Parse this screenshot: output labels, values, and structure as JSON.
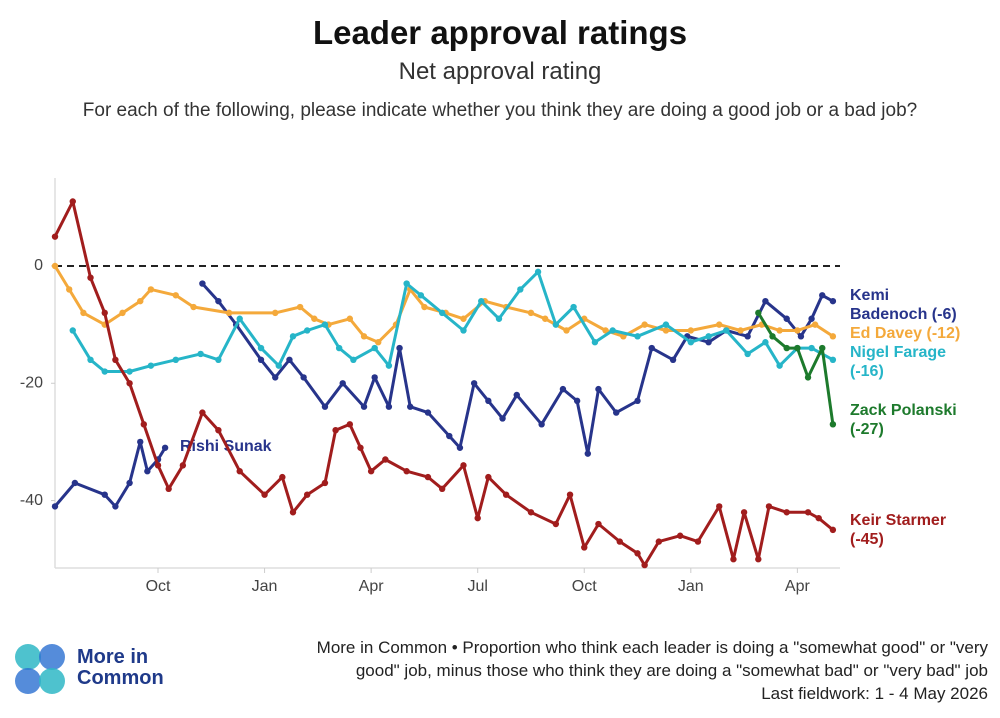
{
  "chart_data": {
    "type": "line",
    "title": "Leader approval ratings",
    "subtitle": "Net approval rating",
    "question": "For each of the following, please indicate whether you think they are doing a good job or a bad job?",
    "xlim": [
      0.1,
      22.2
    ],
    "xticks": [
      {
        "value": 3,
        "label": "Oct"
      },
      {
        "value": 6,
        "label": "Jan"
      },
      {
        "value": 9,
        "label": "Apr"
      },
      {
        "value": 12,
        "label": "Jul"
      },
      {
        "value": 15,
        "label": "Oct"
      },
      {
        "value": 18,
        "label": "Jan"
      },
      {
        "value": 21,
        "label": "Apr"
      }
    ],
    "ylim": [
      -51.5,
      15
    ],
    "yticks": [
      -40,
      -20,
      0
    ],
    "hline": 0,
    "series": [
      {
        "label": [
          "Rishi Sunak"
        ],
        "color": "#27348b",
        "x": [
          0.1,
          0.66,
          1.5,
          1.8,
          2.2,
          2.5,
          2.7,
          3.0,
          3.2
        ],
        "values": [
          -41,
          -37,
          -39,
          -41,
          -37,
          -30,
          -35,
          -33,
          -31
        ]
      },
      {
        "label": [
          "Kemi",
          "Badenoch (-6)"
        ],
        "color": "#27348b",
        "x": [
          4.25,
          4.7,
          5.2,
          5.9,
          6.3,
          6.7,
          7.1,
          7.7,
          8.2,
          8.8,
          9.1,
          9.5,
          9.8,
          10.1,
          10.6,
          11.2,
          11.5,
          11.9,
          12.3,
          12.7,
          13.1,
          13.8,
          14.4,
          14.8,
          15.1,
          15.4,
          15.9,
          16.5,
          16.9,
          17.5,
          17.9,
          18.5,
          19.0,
          19.6,
          20.1,
          20.7,
          21.1,
          21.4,
          21.7,
          22.0
        ],
        "values": [
          -3,
          -6,
          -10,
          -16,
          -19,
          -16,
          -19,
          -24,
          -20,
          -24,
          -19,
          -24,
          -14,
          -24,
          -25,
          -29,
          -31,
          -20,
          -23,
          -26,
          -22,
          -27,
          -21,
          -23,
          -32,
          -21,
          -25,
          -23,
          -14,
          -16,
          -12,
          -13,
          -11,
          -12,
          -6,
          -9,
          -12,
          -9,
          -5,
          -6
        ]
      },
      {
        "label": [
          "Ed Davey (-12)"
        ],
        "color": "#f4a93b",
        "x": [
          0.1,
          0.5,
          0.9,
          1.5,
          2.0,
          2.5,
          2.8,
          3.5,
          4.0,
          5.0,
          6.3,
          7.0,
          7.4,
          7.8,
          8.4,
          8.8,
          9.2,
          9.7,
          10.1,
          10.5,
          11.1,
          11.6,
          12.2,
          12.8,
          13.5,
          13.9,
          14.5,
          15.0,
          15.6,
          16.1,
          16.7,
          17.3,
          18.0,
          18.8,
          19.4,
          20.0,
          20.5,
          21.0,
          21.5,
          22.0
        ],
        "values": [
          0,
          -4,
          -8,
          -10,
          -8,
          -6,
          -4,
          -5,
          -7,
          -8,
          -8,
          -7,
          -9,
          -10,
          -9,
          -12,
          -13,
          -10,
          -4,
          -7,
          -8,
          -9,
          -6,
          -7,
          -8,
          -9,
          -11,
          -9,
          -11,
          -12,
          -10,
          -11,
          -11,
          -10,
          -11,
          -10,
          -11,
          -11,
          -10,
          -12
        ]
      },
      {
        "label": [
          "Nigel Farage",
          "(-16)"
        ],
        "color": "#26b5c8",
        "x": [
          0.6,
          1.1,
          1.5,
          2.2,
          2.8,
          3.5,
          4.2,
          4.7,
          5.3,
          5.9,
          6.4,
          6.8,
          7.2,
          7.7,
          8.1,
          8.5,
          9.1,
          9.5,
          10.0,
          10.4,
          11.0,
          11.6,
          12.1,
          12.6,
          13.2,
          13.7,
          14.2,
          14.7,
          15.3,
          15.8,
          16.5,
          17.3,
          18.0,
          18.5,
          19.0,
          19.6,
          20.1,
          20.5,
          21.0,
          21.4,
          22.0
        ],
        "values": [
          -11,
          -16,
          -18,
          -18,
          -17,
          -16,
          -15,
          -16,
          -9,
          -14,
          -17,
          -12,
          -11,
          -10,
          -14,
          -16,
          -14,
          -17,
          -3,
          -5,
          -8,
          -11,
          -6,
          -9,
          -4,
          -1,
          -10,
          -7,
          -13,
          -11,
          -12,
          -10,
          -13,
          -12,
          -11,
          -15,
          -13,
          -17,
          -14,
          -14,
          -16
        ]
      },
      {
        "label": [
          "Zack Polanski",
          "(-27)"
        ],
        "color": "#1d7a2c",
        "x": [
          19.9,
          20.3,
          20.7,
          21.0,
          21.3,
          21.7,
          22.0
        ],
        "values": [
          -8,
          -12,
          -14,
          -14,
          -19,
          -14,
          -27
        ]
      },
      {
        "label": [
          "Keir Starmer",
          "(-45)"
        ],
        "color": "#a11d1d",
        "x": [
          0.1,
          0.6,
          1.1,
          1.5,
          1.8,
          2.2,
          2.6,
          3.0,
          3.3,
          3.7,
          4.25,
          4.7,
          5.3,
          6.0,
          6.5,
          6.8,
          7.2,
          7.7,
          8.0,
          8.4,
          8.7,
          9.0,
          9.4,
          10.0,
          10.6,
          11.0,
          11.6,
          12.0,
          12.3,
          12.8,
          13.5,
          14.2,
          14.6,
          15.0,
          15.4,
          16.0,
          16.5,
          16.7,
          17.1,
          17.7,
          18.2,
          18.8,
          19.2,
          19.5,
          19.9,
          20.2,
          20.7,
          21.3,
          21.6,
          22.0
        ],
        "values": [
          5,
          11,
          -2,
          -8,
          -16,
          -20,
          -27,
          -34,
          -38,
          -34,
          -25,
          -28,
          -35,
          -39,
          -36,
          -42,
          -39,
          -37,
          -28,
          -27,
          -31,
          -35,
          -33,
          -35,
          -36,
          -38,
          -34,
          -43,
          -36,
          -39,
          -42,
          -44,
          -39,
          -48,
          -44,
          -47,
          -49,
          -51,
          -47,
          -46,
          -47,
          -41,
          -50,
          -42,
          -50,
          -41,
          -42,
          -42,
          -43,
          -45
        ]
      }
    ],
    "source": "More in Common",
    "footnote": [
      "More in Common • Proportion who think each leader is doing a \"somewhat good\" or \"very",
      "good\" job, minus those who think they are doing a \"somewhat bad\" or \"very bad\" job",
      "Last fieldwork: 1 - 4 May 2026"
    ]
  }
}
